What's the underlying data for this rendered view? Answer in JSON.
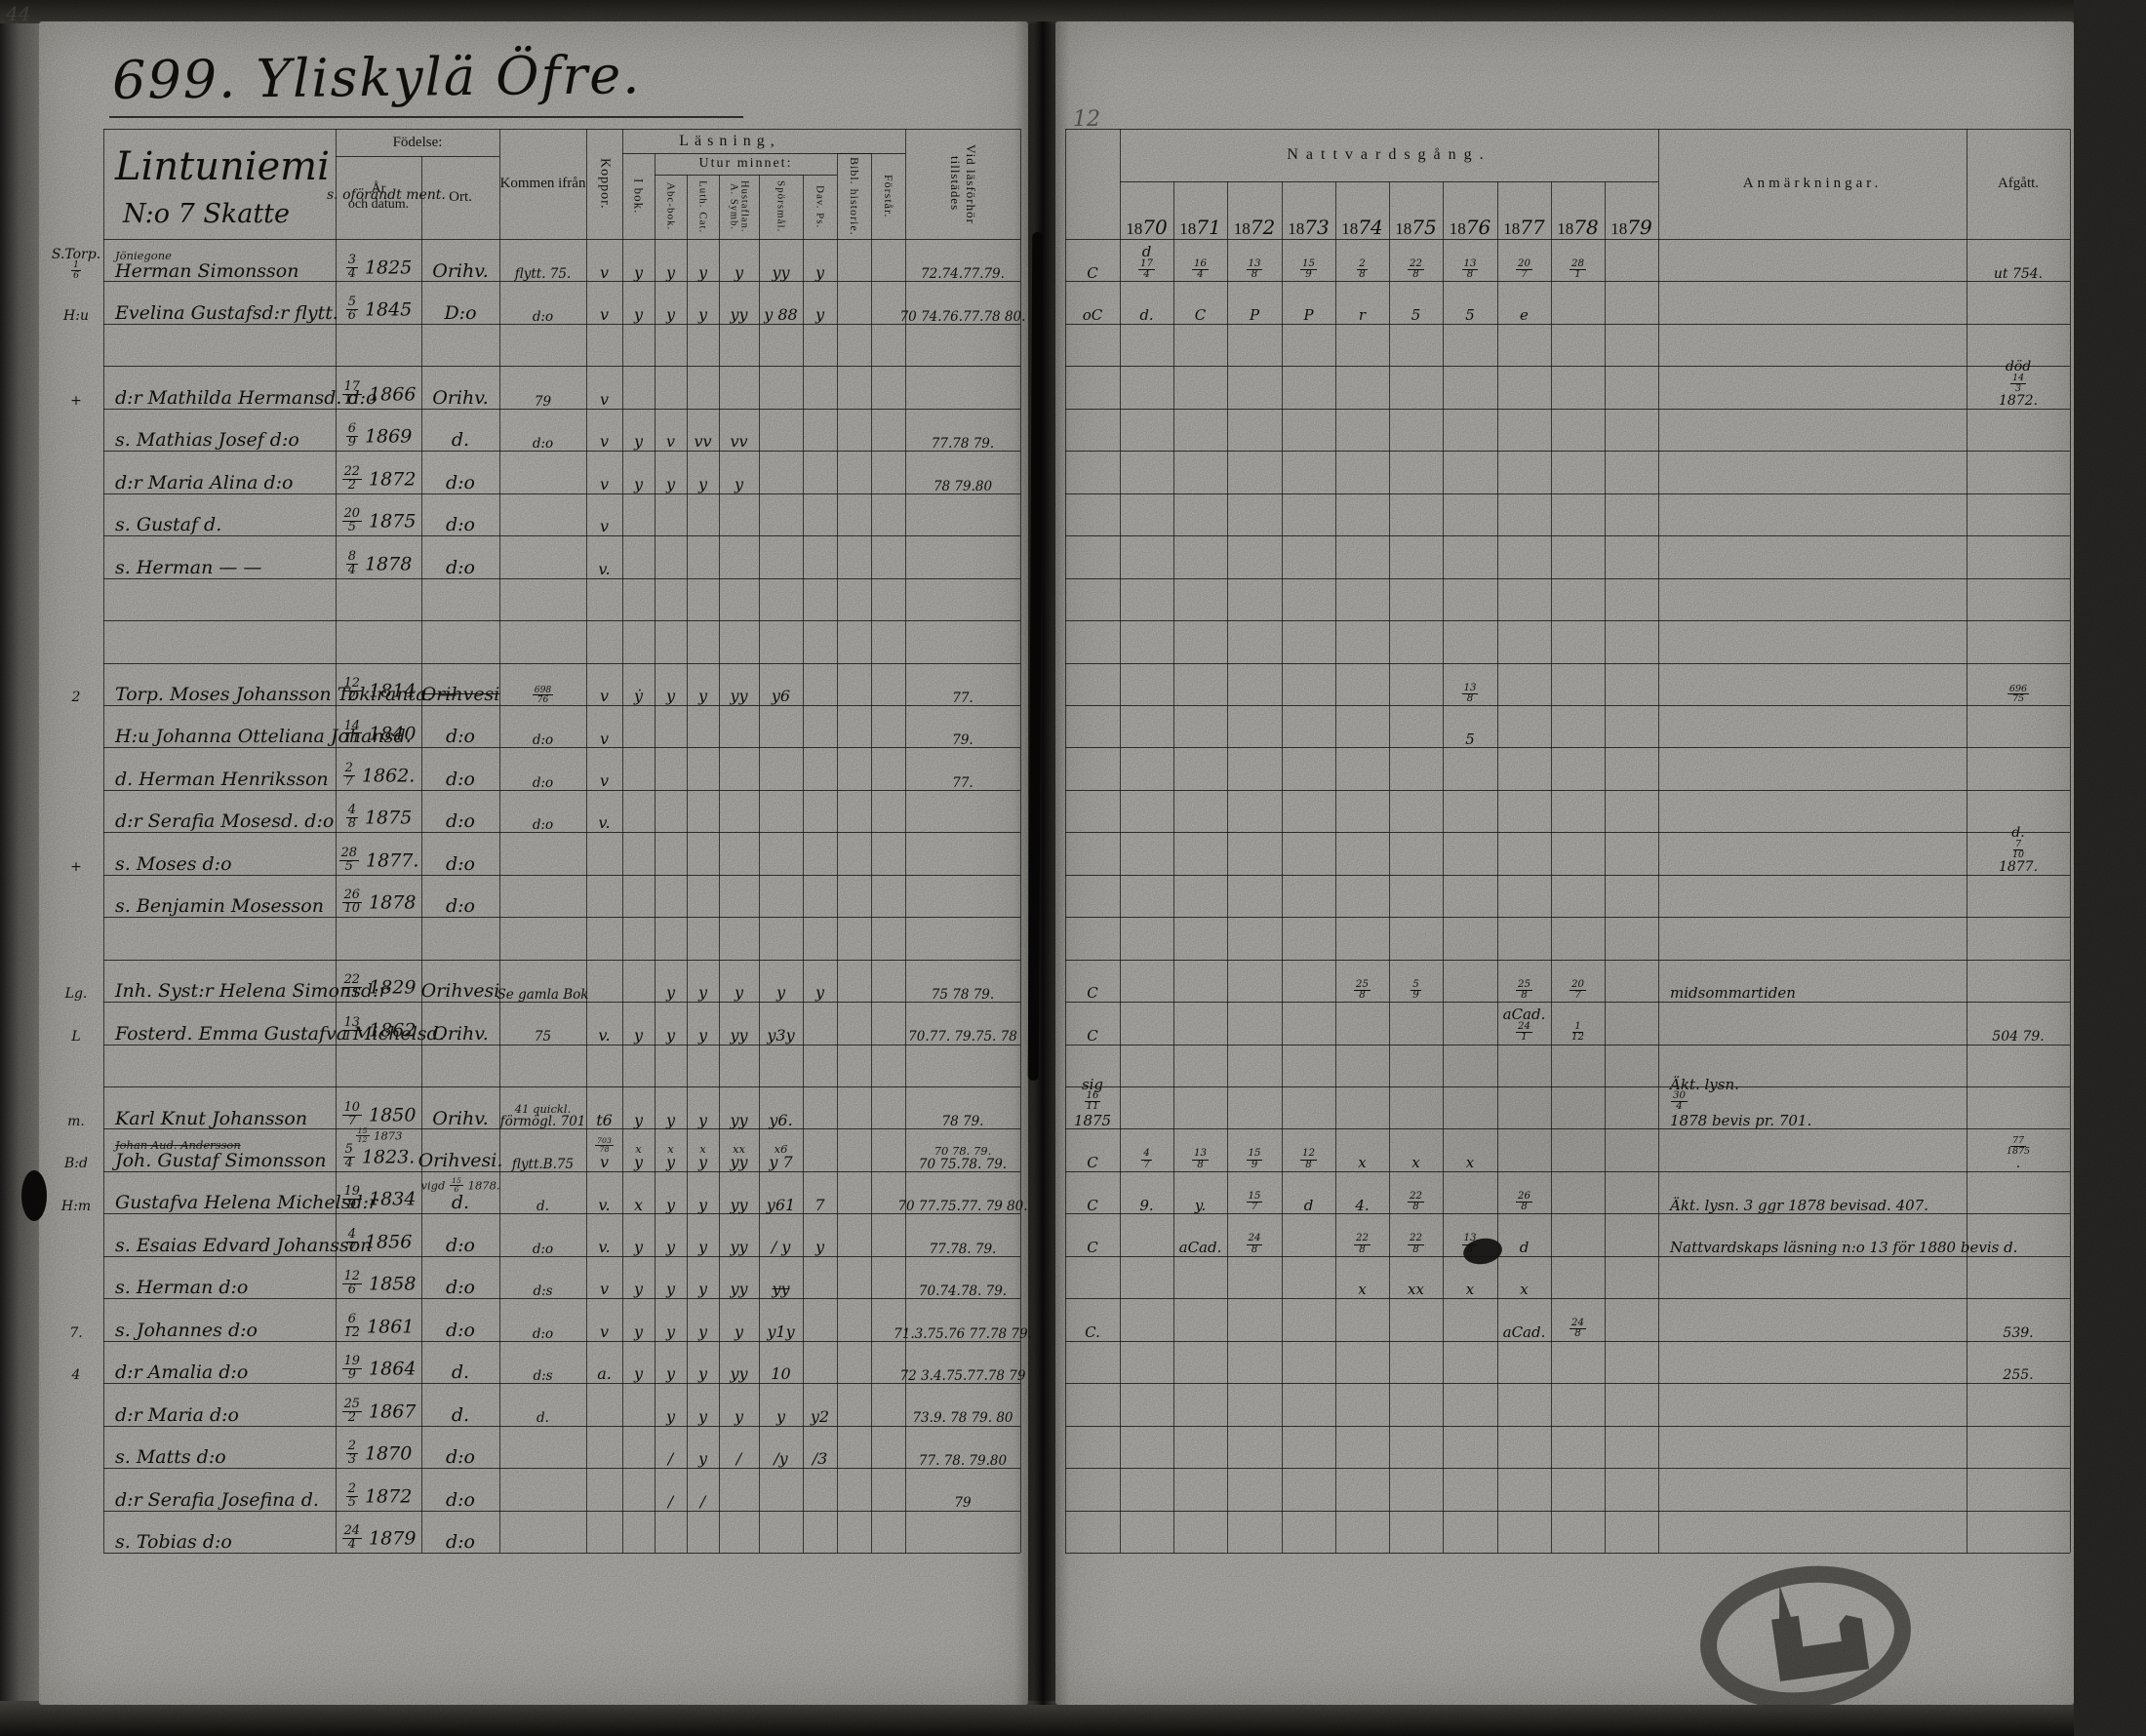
{
  "document": {
    "title": "699. Yliskylä Öfre.",
    "corner_note": "44",
    "fold_note": "12"
  },
  "estate": {
    "name": "Lintuniemi",
    "note": "s. oförändt ment.",
    "number": "N:o 7 Skatte"
  },
  "columns": {
    "fodelse": "Födelse:",
    "ar_och_datum": "År\noch datum.",
    "ort": "Ort.",
    "kommen_ifran": "Kommen ifrån",
    "koppor": "Koppor.",
    "lasning": "Läsning,",
    "i_bok": "I bok.",
    "utur_minnet": "Utur minnet:",
    "abc_bok": "Abc-bok.",
    "luth_cat": "Luth. Cat.",
    "hustaflan": "Hustaflan.\nA. Symb.",
    "sporsmal": "Spörsmål.",
    "dav_ps": "Dav. Ps.",
    "bibl_historie": "Bibl. historie.",
    "forstar": "Förstår.",
    "vid_lasforhor": "Vid läsförhör\ntillstädes",
    "nattvardsgang": "Nattvardsgång.",
    "anmarkningar": "Anmärkningar.",
    "afgatt": "Afgått."
  },
  "years": [
    "1870",
    "1871",
    "1872",
    "1873",
    "1874",
    "1875",
    "1876",
    "1877",
    "1878",
    "1879"
  ],
  "rows": [
    {
      "margin": "S.Torp. 1/6",
      "name": "Herman Simonsson",
      "name2": "Jöniegone",
      "date": "3/4 1825",
      "ort": "Orihv.",
      "from": "flytt. 75.",
      "koppor": "v",
      "marks": [
        "y",
        "y",
        "y",
        "y",
        "yy",
        "y",
        "",
        ""
      ],
      "forhor": "72.74.77.79.",
      "comm": "C",
      "years": [
        "d 17/4",
        "16/4",
        "13/8",
        "15/9",
        "2/8",
        "22/8",
        "13/8",
        "20/7",
        "28/1",
        ""
      ],
      "afg": "ut 754."
    },
    {
      "margin": "H:u",
      "name": "Evelina Gustafsd:r flytt.",
      "date": "5/6 1845",
      "ort": "D:o",
      "from": "d:o",
      "koppor": "v",
      "marks": [
        "y",
        "y",
        "y",
        "yy",
        "y 88",
        "y",
        "",
        ""
      ],
      "forhor": "70 74.76.77.78 80.",
      "comm": "oC",
      "years": [
        "d.",
        "C",
        "P",
        "P",
        "r",
        "5",
        "5",
        "e",
        "",
        ""
      ]
    },
    {},
    {
      "margin": "+",
      "name": "d:r Mathilda Hermansd. d:o",
      "date": "17/11 1866",
      "ort": "Orihv.",
      "from": "79",
      "koppor": "v",
      "afg": "död 14/3 1872."
    },
    {
      "name": "s. Mathias Josef d:o",
      "date": "6/9 1869",
      "ort": "d.",
      "from": "d:o",
      "koppor": "v",
      "marks": [
        "y",
        "v",
        "vv",
        "vv",
        "",
        "",
        "",
        ""
      ],
      "forhor": "77.78 79."
    },
    {
      "name": "d:r Maria Alina d:o",
      "date": "22/2 1872",
      "ort": "d:o",
      "koppor": "v",
      "marks": [
        "y",
        "y",
        "y",
        "y",
        "",
        "",
        "",
        ""
      ],
      "forhor": "78 79.80"
    },
    {
      "name": "s. Gustaf d.",
      "date": "20/5 1875",
      "ort": "d:o",
      "koppor": "v"
    },
    {
      "name": "s. Herman — —",
      "date": "8/4 1878",
      "ort": "d:o",
      "koppor": "v."
    },
    {},
    {},
    {
      "margin": "2",
      "name": "Torp. Moses Johansson Tokiranta. —",
      "date": "12/2 1814",
      "ort": "~Orihvesi",
      "from": "698/76",
      "koppor": "v",
      "marks": [
        "ẏ",
        "y",
        "y",
        "yy",
        "y6",
        "",
        "",
        ""
      ],
      "forhor": "77.",
      "years": [
        "",
        "",
        "",
        "",
        "",
        "",
        "13/8",
        "",
        "",
        ""
      ],
      "afg": "696/75"
    },
    {
      "name": "H:u Johanna Otteliana Johansd.",
      "date": "14/11 1840",
      "ort": "d:o",
      "from": "d:o",
      "koppor": "v",
      "forhor": "79.",
      "years": [
        "",
        "",
        "",
        "",
        "",
        "",
        "5",
        "",
        "",
        ""
      ]
    },
    {
      "name": "d. Herman Henriksson",
      "date": "2/7 1862.",
      "ort": "d:o",
      "from": "d:o",
      "koppor": "v",
      "forhor": "77."
    },
    {
      "name": "d:r Serafia Mosesd. d:o",
      "date": "4/8 1875",
      "ort": "d:o",
      "from": "d:o",
      "koppor": "v."
    },
    {
      "margin": "+",
      "name": "s. Moses d:o",
      "date": "28/5 1877.",
      "ort": "d:o",
      "afg": "d. 7/10 1877."
    },
    {
      "name": "s. Benjamin Mosesson",
      "date": "26/10 1878",
      "ort": "d:o"
    },
    {},
    {
      "margin": "Lg.",
      "name": "Inh. Syst:r Helena Simonsd:r",
      "date": "22/11 1829",
      "ort": "Orihvesi",
      "from": "Se gamla Bok",
      "marks": [
        "",
        "y",
        "y",
        "y",
        "y",
        "y",
        "",
        ""
      ],
      "forhor": "75 78 79.",
      "comm": "C",
      "years": [
        "",
        "",
        "",
        "",
        "25/8",
        "5/9",
        "",
        "25/8",
        "20/7",
        ""
      ],
      "anm": "midsommartiden"
    },
    {
      "margin": "L",
      "name": "Fosterd. Emma Gustafva Michelsd.",
      "date": "13/11 1862",
      "ort": "Orihv.",
      "from": "75",
      "koppor": "v.",
      "marks": [
        "y",
        "y",
        "y",
        "yy",
        "y3y",
        "",
        "",
        ""
      ],
      "forhor": "70.77. 79.75. 78",
      "comm": "C",
      "years": [
        "",
        "",
        "",
        "",
        "",
        "",
        "",
        "aCad. 24/1",
        "1/12",
        ""
      ],
      "afg": "504 79."
    },
    {},
    {
      "margin": "m.",
      "name": "Karl Knut Johansson",
      "date": "10/7 1850",
      "ort": "Orihv.",
      "from": "förmögl. 701",
      "from2": "41 quickl.",
      "koppor": "t6",
      "marks": [
        "y",
        "y",
        "y",
        "yy",
        "y6.",
        "",
        "",
        ""
      ],
      "forhor": "78 79.",
      "comm": "sig 16/11 1875",
      "anm": "Äkt. lysn. 30/4 1878 bevis pr. 701."
    },
    {
      "margin": "B:d",
      "name2": "~Johan Aud. Andersson",
      "name": "Joh. Gustaf Simonsson",
      "date2": "15/12 1873",
      "date": "5/4 1823.",
      "ort": "Orihvesi.",
      "from": "flytt.B.75",
      "koppor2": "703/78",
      "koppor": "v",
      "marks2": [
        "x",
        "x",
        "x",
        "xx",
        "x6",
        "",
        "",
        ""
      ],
      "marks": [
        "y",
        "y",
        "y",
        "yy",
        "y 7",
        "",
        "",
        ""
      ],
      "forhor2": "70 78. 79.",
      "forhor": "70 75.78. 79.",
      "comm": "C",
      "years": [
        "4/7",
        "13/8",
        "15/9",
        "12/8",
        "x",
        "x",
        "x",
        "",
        "",
        ""
      ],
      "afg": "77/1875."
    },
    {
      "margin": "H:m",
      "name": "Gustafva Helena Michelsd:r",
      "date": "19/9 1834",
      "ort_note": "vigd 15/6 1878.",
      "ort": "d.",
      "from": "d.",
      "koppor": "v.",
      "marks": [
        "x",
        "y",
        "y",
        "yy",
        "y61",
        "7",
        "",
        ""
      ],
      "forhor": "70 77.75.77. 79 80.",
      "comm": "C",
      "years": [
        "9.",
        "y.",
        "15/7",
        "d",
        "4.",
        "22/8",
        "",
        "26/8",
        "",
        ""
      ],
      "anm": "Äkt. lysn. 3 ggr 1878 bevisad. 407."
    },
    {
      "name": "s. Esaias Edvard Johansson",
      "date": "4/7 1856",
      "ort": "d:o",
      "from": "d:o",
      "koppor": "v.",
      "marks": [
        "y",
        "y",
        "y",
        "yy",
        "/ y",
        "y",
        "",
        ""
      ],
      "forhor": "77.78. 79.",
      "comm": "C",
      "years": [
        "",
        "aCad.",
        "24/8",
        "",
        "~22/8",
        "22/8",
        "13/8",
        "d",
        "",
        ""
      ],
      "anm": "Nattvardskaps läsning n:o 13 för 1880 bevis d."
    },
    {
      "name": "s. Herman d:o",
      "date": "12/6 1858",
      "ort": "d:o",
      "from": "d:s",
      "koppor": "v",
      "marks": [
        "y",
        "y",
        "y",
        "yy",
        "~yy",
        "",
        "",
        ""
      ],
      "forhor": "70.74.78. 79.",
      "years": [
        "",
        "",
        "",
        "",
        "x",
        "xx",
        "x",
        "x",
        "",
        ""
      ]
    },
    {
      "margin": "7.",
      "name": "s. Johannes d:o",
      "date": "6/12 1861",
      "ort": "d:o",
      "from": "d:o",
      "koppor": "v",
      "marks": [
        "y",
        "y",
        "y",
        "y",
        "y1y",
        "",
        "",
        ""
      ],
      "forhor": "71.3.75.76 77.78 79.",
      "comm": "C.",
      "years": [
        "",
        "",
        "",
        "",
        "",
        "",
        "",
        "aCad.",
        "24/8",
        ""
      ],
      "afg": "539."
    },
    {
      "margin": "4",
      "name": "d:r Amalia d:o",
      "date": "19/9 1864",
      "ort": "d.",
      "from": "d:s",
      "koppor": "a.",
      "marks": [
        "y",
        "y",
        "y",
        "yy",
        "10",
        "",
        "",
        ""
      ],
      "forhor": "72 3.4.75.77.78 79",
      "afg": "255."
    },
    {
      "name": "d:r Maria d:o",
      "date": "25/2 1867",
      "ort": "d.",
      "from": "d.",
      "marks": [
        "",
        "y",
        "y",
        "y",
        "y",
        "y2",
        "",
        ""
      ],
      "forhor": "73.9. 78 79. 80"
    },
    {
      "name": "s. Matts d:o",
      "date": "2/3 1870",
      "ort": "d:o",
      "marks": [
        "",
        "/",
        "y",
        "/",
        "/y",
        "/3",
        "",
        ""
      ],
      "forhor": "77. 78. 79.80"
    },
    {
      "name": "d:r Serafia Josefina d.",
      "date": "2/5 1872",
      "ort": "d:o",
      "marks": [
        "",
        "/",
        "/",
        "",
        "",
        "",
        "",
        ""
      ],
      "forhor": "79"
    },
    {
      "name": "s. Tobias d:o",
      "date": "24/4 1879",
      "ort": "d:o"
    }
  ]
}
